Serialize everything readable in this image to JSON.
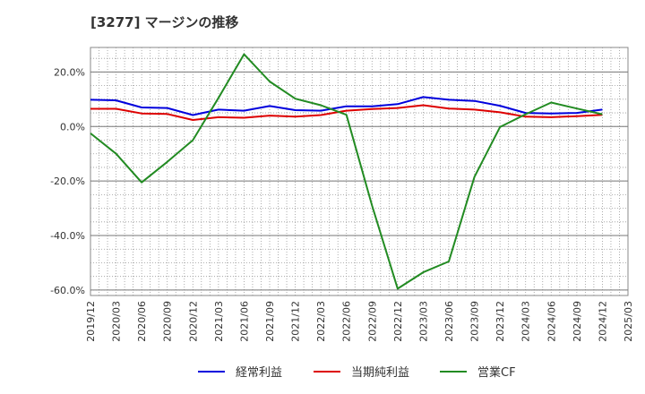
{
  "chart_data": {
    "type": "line",
    "title": "[3277]  マージンの推移",
    "xlabel": "",
    "ylabel": "",
    "x": [
      "2019/12",
      "2020/03",
      "2020/06",
      "2020/09",
      "2020/12",
      "2021/03",
      "2021/06",
      "2021/09",
      "2021/12",
      "2022/03",
      "2022/06",
      "2022/09",
      "2022/12",
      "2023/03",
      "2023/06",
      "2023/09",
      "2023/12",
      "2024/03",
      "2024/06",
      "2024/09",
      "2024/12",
      "2025/03"
    ],
    "x_ticks": [
      "2019/12",
      "2020/03",
      "2020/06",
      "2020/09",
      "2020/12",
      "2021/03",
      "2021/06",
      "2021/09",
      "2021/12",
      "2022/03",
      "2022/06",
      "2022/09",
      "2022/12",
      "2023/03",
      "2023/06",
      "2023/09",
      "2023/12",
      "2024/03",
      "2024/06",
      "2024/09",
      "2024/12",
      "2025/03"
    ],
    "y_ticks": [
      20,
      0,
      -20,
      -40,
      -60
    ],
    "y_tick_labels": [
      "20.0%",
      "0.0%",
      "-20.0%",
      "-40.0%",
      "-60.0%"
    ],
    "ylim": [
      -62,
      29
    ],
    "grid": true,
    "legend": "bottom",
    "series": [
      {
        "name": "経常利益",
        "color": "#0000dd",
        "values": [
          9.8,
          9.6,
          7.0,
          6.8,
          4.2,
          6.2,
          5.8,
          7.5,
          6.0,
          5.8,
          7.4,
          7.4,
          8.2,
          10.8,
          9.8,
          9.4,
          7.6,
          5.0,
          4.8,
          5.0,
          6.2,
          null
        ]
      },
      {
        "name": "当期純利益",
        "color": "#dd0000",
        "values": [
          6.5,
          6.5,
          4.8,
          4.6,
          2.4,
          3.4,
          3.2,
          4.0,
          3.6,
          4.2,
          5.8,
          6.4,
          6.8,
          7.8,
          6.6,
          6.2,
          5.2,
          3.6,
          3.4,
          3.8,
          4.3,
          null
        ]
      },
      {
        "name": "営業CF",
        "color": "#228b22",
        "values": [
          -2.5,
          -10.0,
          -20.5,
          -13.0,
          -5.0,
          10.5,
          26.5,
          16.5,
          10.2,
          7.8,
          4.3,
          -29.0,
          -59.5,
          -53.5,
          -49.5,
          -18.5,
          -0.2,
          4.5,
          8.8,
          6.6,
          4.5,
          null
        ]
      }
    ]
  }
}
